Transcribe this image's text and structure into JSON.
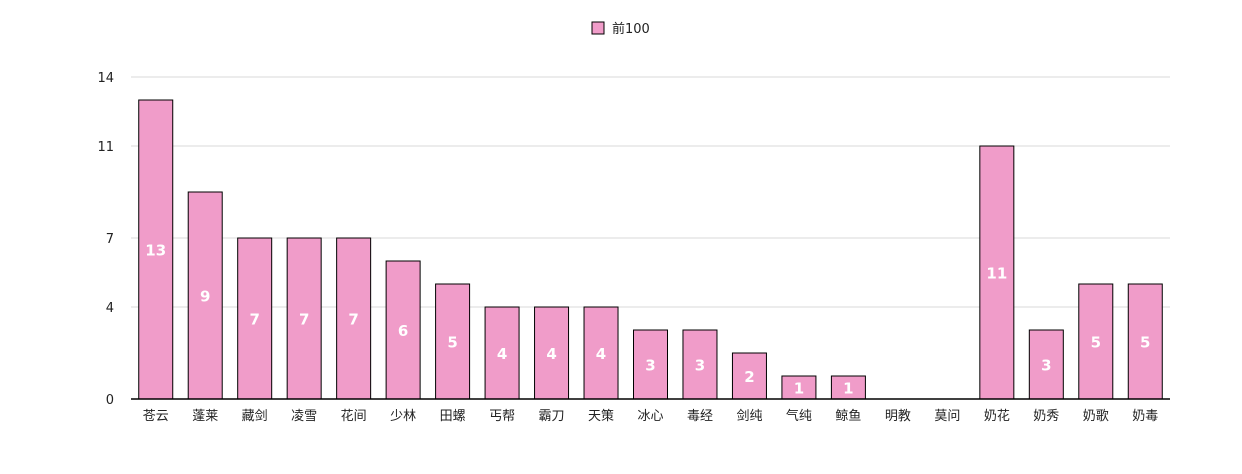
{
  "chart_data": {
    "type": "bar",
    "legend": {
      "label": "前100",
      "position": "top-center"
    },
    "series": [
      {
        "name": "前100",
        "color": "#f09cc9",
        "values": [
          13,
          9,
          7,
          7,
          7,
          6,
          5,
          4,
          4,
          4,
          3,
          3,
          2,
          1,
          1,
          0,
          0,
          11,
          3,
          5,
          5
        ]
      }
    ],
    "categories": [
      "苍云",
      "蓬莱",
      "藏剑",
      "凌雪",
      "花间",
      "少林",
      "田螺",
      "丐帮",
      "霸刀",
      "天策",
      "冰心",
      "毒经",
      "剑纯",
      "气纯",
      "鲸鱼",
      "明教",
      "莫问",
      "奶花",
      "奶秀",
      "奶歌",
      "奶毒"
    ],
    "data_labels": [
      "13",
      "9",
      "7",
      "7",
      "7",
      "6",
      "5",
      "4",
      "4",
      "4",
      "3",
      "3",
      "2",
      "1",
      "1",
      "",
      "",
      "11",
      "3",
      "5",
      "5"
    ],
    "y_ticks": [
      0,
      4,
      7,
      11,
      14
    ],
    "y_tick_labels": [
      "0",
      "4",
      "7",
      "11",
      "14"
    ],
    "ylim": [
      0,
      14
    ],
    "grid": true,
    "colors": {
      "bar_fill": "#f09cc9",
      "bar_stroke": "#000000",
      "grid": "#d9d9d9",
      "axis": "#000000"
    }
  }
}
